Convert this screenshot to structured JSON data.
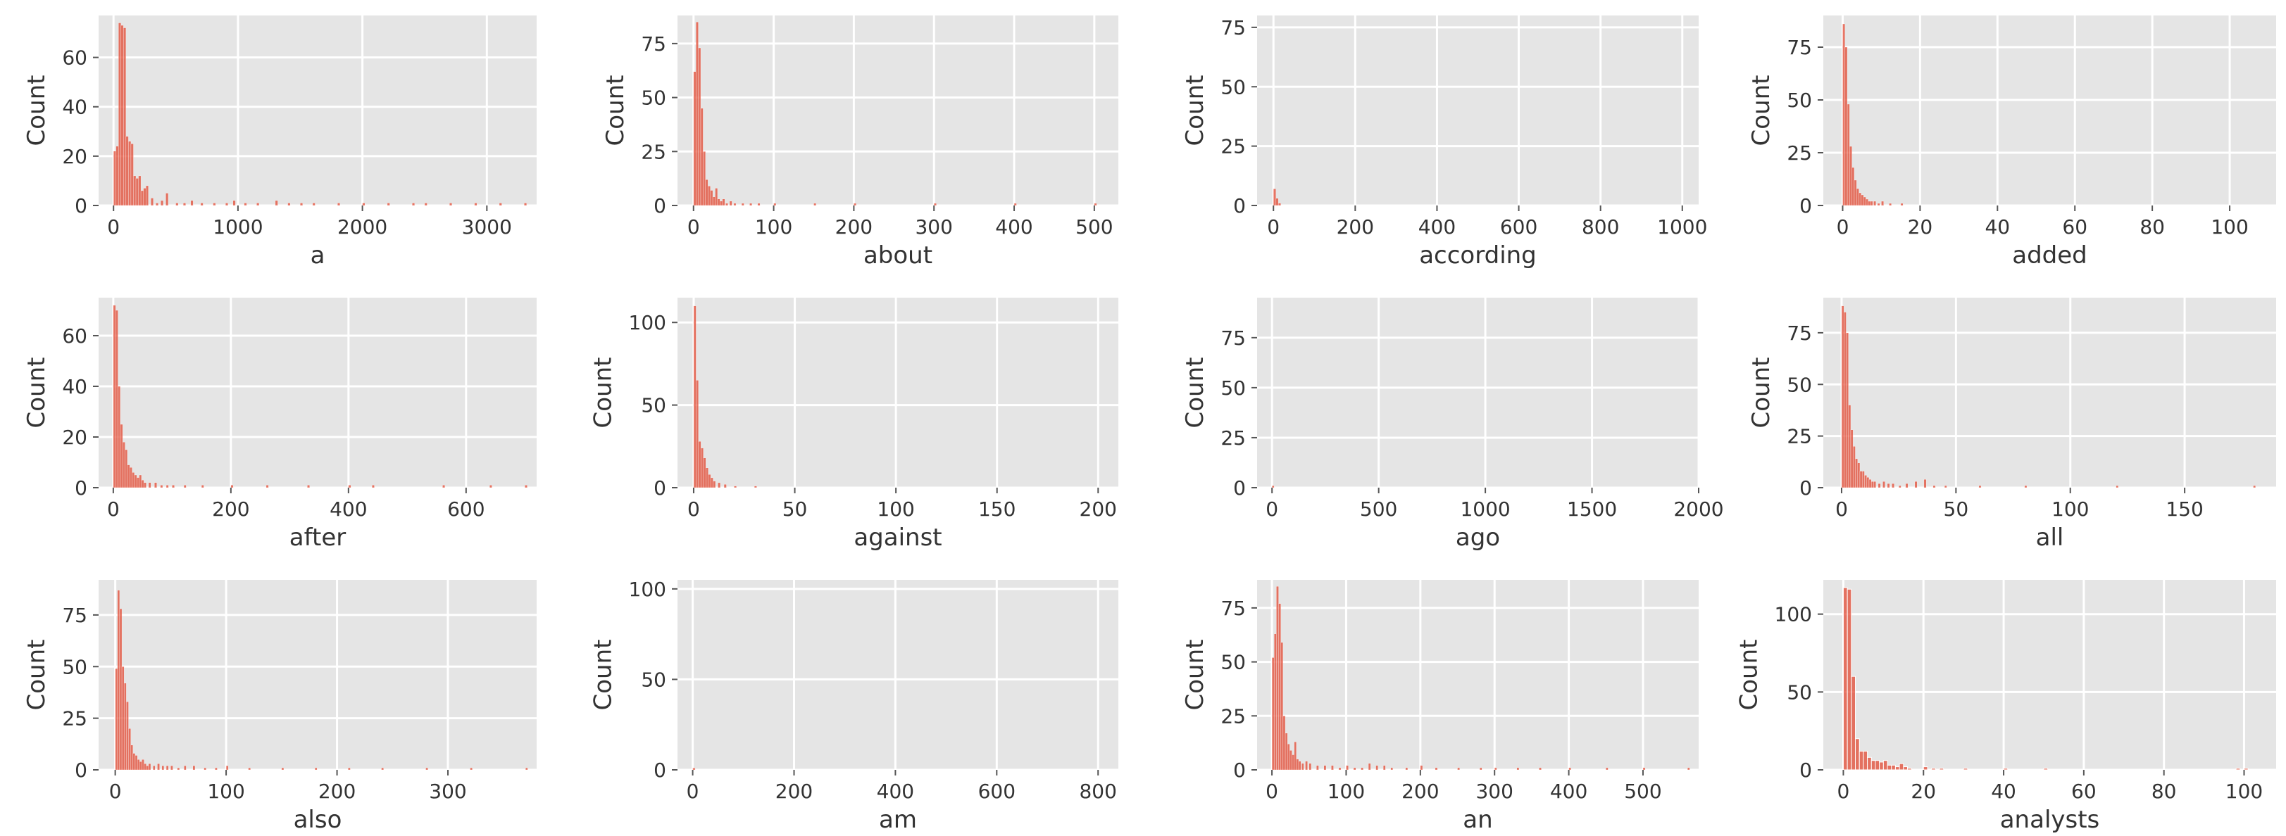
{
  "chart_data": [
    {
      "type": "bar",
      "xlabel": "a",
      "ylabel": "Count",
      "xlim": [
        -120,
        3400
      ],
      "ylim": [
        0,
        77
      ],
      "xticks": [
        0,
        1000,
        2000,
        3000
      ],
      "yticks": [
        0,
        20,
        40,
        60
      ],
      "bin_width": 20,
      "bar_color": "#E24A33",
      "x": [
        0,
        20,
        40,
        60,
        80,
        100,
        120,
        140,
        160,
        180,
        200,
        220,
        240,
        260,
        300,
        340,
        380,
        420,
        500,
        560,
        620,
        700,
        800,
        900,
        960,
        1050,
        1150,
        1300,
        1400,
        1500,
        1600,
        1800,
        2000,
        2200,
        2400,
        2500,
        2700,
        2900,
        3100,
        3300
      ],
      "y": [
        22,
        24,
        74,
        73,
        72,
        28,
        26,
        25,
        12,
        11,
        12,
        6,
        7,
        8,
        3,
        1,
        2,
        5,
        1,
        1,
        2,
        1,
        1,
        1,
        2,
        1,
        1,
        2,
        1,
        1,
        1,
        1,
        1,
        1,
        1,
        1,
        1,
        1,
        1,
        1
      ]
    },
    {
      "type": "bar",
      "xlabel": "about",
      "ylabel": "Count",
      "xlim": [
        -20,
        530
      ],
      "ylim": [
        0,
        88
      ],
      "xticks": [
        0,
        100,
        200,
        300,
        400,
        500
      ],
      "yticks": [
        0,
        25,
        50,
        75
      ],
      "bin_width": 3,
      "bar_color": "#E24A33",
      "x": [
        0,
        3,
        6,
        9,
        12,
        15,
        18,
        21,
        24,
        27,
        30,
        33,
        36,
        40,
        45,
        50,
        60,
        70,
        80,
        100,
        150,
        200,
        300,
        400,
        500
      ],
      "y": [
        62,
        85,
        73,
        45,
        25,
        12,
        9,
        7,
        4,
        8,
        3,
        2,
        3,
        1,
        2,
        1,
        1,
        1,
        1,
        1,
        1,
        1,
        1,
        1,
        1
      ]
    },
    {
      "type": "bar",
      "xlabel": "according",
      "ylabel": "Count",
      "xlim": [
        -40,
        1040
      ],
      "ylim": [
        0,
        80
      ],
      "xticks": [
        0,
        200,
        400,
        600,
        800,
        1000
      ],
      "yticks": [
        0,
        25,
        50,
        75
      ],
      "bin_width": 6,
      "bar_color": "#E24A33",
      "x": [
        0,
        6,
        12
      ],
      "y": [
        7,
        3,
        1
      ]
    },
    {
      "type": "bar",
      "xlabel": "added",
      "ylabel": "Count",
      "xlim": [
        -5,
        112
      ],
      "ylim": [
        0,
        90
      ],
      "xticks": [
        0,
        20,
        40,
        60,
        80,
        100
      ],
      "yticks": [
        0,
        25,
        50,
        75
      ],
      "bin_width": 0.6,
      "bar_color": "#E24A33",
      "x": [
        0,
        0.6,
        1.2,
        1.8,
        2.4,
        3,
        3.6,
        4.2,
        4.8,
        5.4,
        6,
        6.6,
        7.2,
        8,
        9,
        10,
        12,
        15
      ],
      "y": [
        86,
        75,
        48,
        28,
        18,
        12,
        8,
        6,
        5,
        4,
        3,
        2,
        2,
        2,
        1,
        2,
        1,
        1
      ]
    },
    {
      "type": "bar",
      "xlabel": "after",
      "ylabel": "Count",
      "xlim": [
        -25,
        720
      ],
      "ylim": [
        0,
        75
      ],
      "xticks": [
        0,
        200,
        400,
        600
      ],
      "yticks": [
        0,
        20,
        40,
        60
      ],
      "bin_width": 4,
      "bar_color": "#E24A33",
      "x": [
        0,
        4,
        8,
        12,
        16,
        20,
        24,
        28,
        32,
        36,
        40,
        44,
        48,
        52,
        60,
        70,
        80,
        90,
        100,
        120,
        150,
        200,
        260,
        330,
        400,
        440,
        560,
        640,
        700
      ],
      "y": [
        72,
        70,
        40,
        25,
        18,
        15,
        9,
        8,
        6,
        5,
        4,
        5,
        3,
        2,
        2,
        2,
        1,
        1,
        1,
        1,
        1,
        1,
        1,
        1,
        1,
        1,
        1,
        1,
        1
      ]
    },
    {
      "type": "bar",
      "xlabel": "against",
      "ylabel": "Count",
      "xlim": [
        -8,
        210
      ],
      "ylim": [
        0,
        115
      ],
      "xticks": [
        0,
        50,
        100,
        150,
        200
      ],
      "yticks": [
        0,
        50,
        100
      ],
      "bin_width": 1.2,
      "bar_color": "#E24A33",
      "x": [
        0,
        1.2,
        2.4,
        3.6,
        4.8,
        6,
        7.2,
        8.4,
        9.6,
        12,
        15,
        20,
        30
      ],
      "y": [
        110,
        65,
        28,
        24,
        18,
        12,
        8,
        6,
        4,
        3,
        2,
        1,
        1
      ]
    },
    {
      "type": "bar",
      "xlabel": "ago",
      "ylabel": "Count",
      "xlim": [
        -70,
        2000
      ],
      "ylim": [
        0,
        95
      ],
      "xticks": [
        0,
        500,
        1000,
        1500,
        2000
      ],
      "yticks": [
        0,
        25,
        50,
        75
      ],
      "bin_width": 10,
      "bar_color": "#E24A33",
      "x": [
        0
      ],
      "y": [
        1
      ]
    },
    {
      "type": "bar",
      "xlabel": "all",
      "ylabel": "Count",
      "xlim": [
        -8,
        190
      ],
      "ylim": [
        0,
        92
      ],
      "xticks": [
        0,
        50,
        100,
        150
      ],
      "yticks": [
        0,
        25,
        50,
        75
      ],
      "bin_width": 1,
      "bar_color": "#E24A33",
      "x": [
        0,
        1,
        2,
        3,
        4,
        5,
        6,
        7,
        8,
        9,
        10,
        11,
        12,
        13,
        14,
        16,
        18,
        20,
        22,
        25,
        28,
        32,
        36,
        40,
        45,
        60,
        80,
        120,
        180
      ],
      "y": [
        88,
        85,
        75,
        40,
        28,
        20,
        14,
        12,
        8,
        8,
        6,
        5,
        4,
        3,
        3,
        2,
        3,
        2,
        2,
        1,
        2,
        3,
        4,
        1,
        1,
        1,
        1,
        1,
        1
      ]
    },
    {
      "type": "bar",
      "xlabel": "also",
      "ylabel": "Count",
      "xlim": [
        -15,
        380
      ],
      "ylim": [
        0,
        92
      ],
      "xticks": [
        0,
        100,
        200,
        300
      ],
      "yticks": [
        0,
        25,
        50,
        75
      ],
      "bin_width": 2,
      "bar_color": "#E24A33",
      "x": [
        0,
        2,
        4,
        6,
        8,
        10,
        12,
        14,
        16,
        18,
        20,
        22,
        24,
        26,
        28,
        30,
        34,
        38,
        42,
        46,
        50,
        56,
        62,
        70,
        80,
        90,
        100,
        120,
        150,
        180,
        210,
        240,
        280,
        320,
        370
      ],
      "y": [
        49,
        87,
        78,
        50,
        42,
        33,
        20,
        12,
        8,
        7,
        5,
        4,
        5,
        3,
        2,
        3,
        2,
        3,
        2,
        2,
        2,
        1,
        2,
        2,
        1,
        1,
        2,
        1,
        1,
        1,
        1,
        1,
        1,
        1,
        1
      ]
    },
    {
      "type": "bar",
      "xlabel": "am",
      "ylabel": "Count",
      "xlim": [
        -30,
        840
      ],
      "ylim": [
        0,
        105
      ],
      "xticks": [
        0,
        200,
        400,
        600,
        800
      ],
      "yticks": [
        0,
        50,
        100
      ],
      "bin_width": 5,
      "bar_color": "#E24A33",
      "x": [
        0
      ],
      "y": [
        1
      ]
    },
    {
      "type": "bar",
      "xlabel": "an",
      "ylabel": "Count",
      "xlim": [
        -20,
        575
      ],
      "ylim": [
        0,
        88
      ],
      "xticks": [
        0,
        100,
        200,
        300,
        400,
        500
      ],
      "yticks": [
        0,
        25,
        50,
        75
      ],
      "bin_width": 3,
      "bar_color": "#E24A33",
      "x": [
        0,
        3,
        6,
        9,
        12,
        15,
        18,
        21,
        24,
        27,
        30,
        33,
        36,
        40,
        45,
        50,
        60,
        70,
        80,
        90,
        100,
        110,
        120,
        130,
        140,
        150,
        160,
        180,
        200,
        220,
        250,
        280,
        300,
        330,
        360,
        400,
        450,
        500,
        560
      ],
      "y": [
        52,
        63,
        85,
        77,
        59,
        25,
        17,
        12,
        9,
        7,
        13,
        5,
        4,
        3,
        4,
        3,
        2,
        2,
        2,
        1,
        2,
        1,
        1,
        3,
        2,
        2,
        1,
        1,
        2,
        1,
        1,
        1,
        1,
        1,
        1,
        1,
        1,
        1,
        1
      ]
    },
    {
      "type": "bar",
      "xlabel": "analysts",
      "ylabel": "Count",
      "xlim": [
        -5,
        108
      ],
      "ylim": [
        0,
        122
      ],
      "xticks": [
        0,
        20,
        40,
        60,
        80,
        100
      ],
      "yticks": [
        0,
        50,
        100
      ],
      "bin_width": 1,
      "bar_color": "#E24A33",
      "x": [
        0,
        1,
        2,
        3,
        4,
        5,
        6,
        7,
        8,
        9,
        10,
        11,
        12,
        13,
        14,
        15,
        16,
        20,
        22,
        24,
        30,
        40,
        50,
        98,
        100
      ],
      "y": [
        117,
        116,
        60,
        20,
        12,
        12,
        8,
        6,
        6,
        5,
        6,
        3,
        3,
        2,
        4,
        2,
        1,
        2,
        1,
        1,
        1,
        1,
        1,
        1,
        1
      ]
    }
  ]
}
